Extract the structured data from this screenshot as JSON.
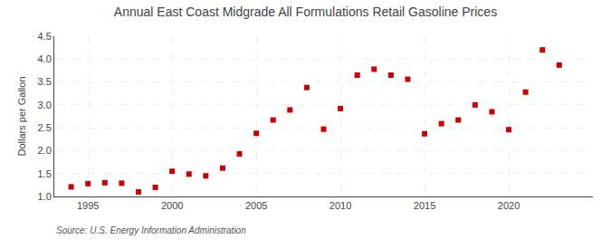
{
  "chart_data": {
    "type": "scatter",
    "title": "Annual East Coast Midgrade All Formulations Retail Gasoline Prices",
    "ylabel": "Dollars per Gallon",
    "annotations": [
      "Source: U.S. Energy Information Administration"
    ],
    "x": [
      1994,
      1995,
      1996,
      1997,
      1998,
      1999,
      2000,
      2001,
      2002,
      2003,
      2004,
      2005,
      2006,
      2007,
      2008,
      2009,
      2010,
      2011,
      2012,
      2013,
      2014,
      2015,
      2016,
      2017,
      2018,
      2019,
      2020,
      2021,
      2022,
      2023
    ],
    "values": [
      1.21,
      1.28,
      1.3,
      1.29,
      1.1,
      1.2,
      1.55,
      1.49,
      1.45,
      1.62,
      1.93,
      2.38,
      2.67,
      2.89,
      3.38,
      2.47,
      2.92,
      3.65,
      3.78,
      3.65,
      3.56,
      2.37,
      2.59,
      2.67,
      3.0,
      2.85,
      2.46,
      3.28,
      4.2,
      3.87
    ],
    "color": "#cc0000",
    "marker": "square",
    "xlim": [
      1993,
      2025
    ],
    "xticks": [
      1995,
      2000,
      2005,
      2010,
      2015,
      2020
    ],
    "ylim": [
      1.0,
      4.5
    ],
    "yticks": [
      {
        "value": 1.0,
        "label": "1.0"
      },
      1.5,
      {
        "value": 2.0,
        "label": "2.0"
      },
      2.5,
      {
        "value": 3.0,
        "label": "3.0"
      },
      3.5,
      {
        "value": 4.0,
        "label": "4.0"
      },
      4.5
    ],
    "grid": true
  }
}
